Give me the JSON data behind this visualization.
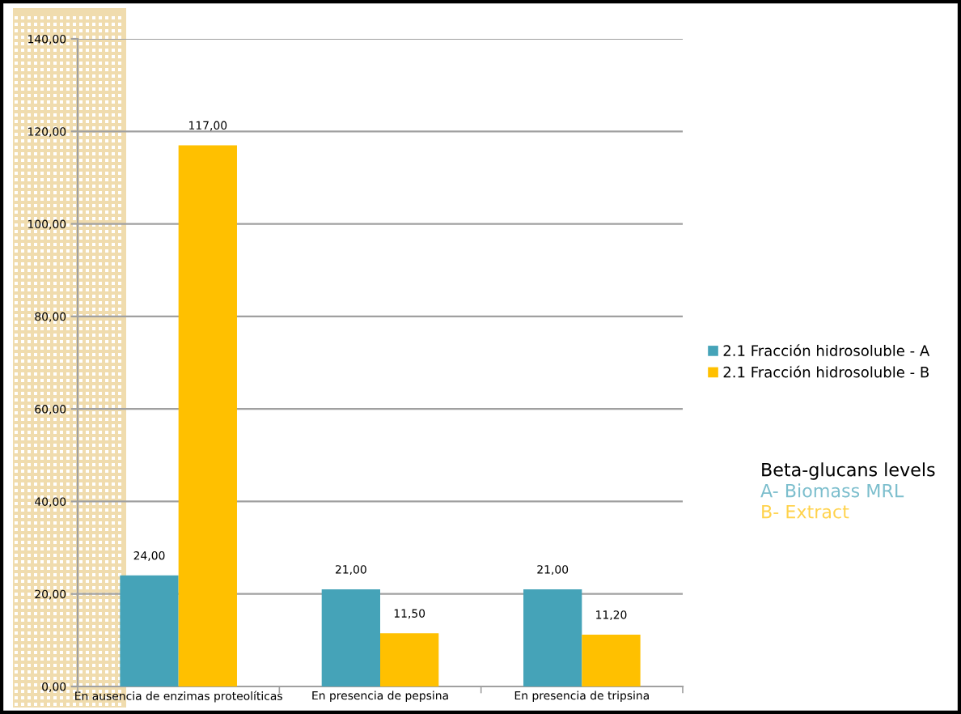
{
  "chart_data": {
    "type": "bar",
    "categories": [
      "En ausencia de enzimas proteolíticas",
      "En presencia de pepsina",
      "En presencia de tripsina"
    ],
    "series": [
      {
        "name": "2.1 Fracción hidrosoluble - A",
        "color": "#45a3b8",
        "values": [
          24,
          21,
          21
        ],
        "value_labels": [
          "24,00",
          "21,00",
          "21,00"
        ]
      },
      {
        "name": "2.1 Fracción hidrosoluble - B",
        "color": "#ffc000",
        "values": [
          117,
          11.5,
          11.2
        ],
        "value_labels": [
          "117,00",
          "11,50",
          "11,20"
        ]
      }
    ],
    "ylim": [
      0,
      140
    ],
    "yticks": [
      {
        "value": 0,
        "label": "0,00"
      },
      {
        "value": 20,
        "label": "20,00"
      },
      {
        "value": 40,
        "label": "40,00"
      },
      {
        "value": 60,
        "label": "60,00"
      },
      {
        "value": 80,
        "label": "80,00"
      },
      {
        "value": 100,
        "label": "100,00"
      },
      {
        "value": 120,
        "label": "120,00"
      },
      {
        "value": 140,
        "label": "140,00"
      }
    ],
    "grid": "y",
    "legend": "right",
    "annotations": [
      "Beta-glucans levels",
      "A- Biomass MRL",
      "B- Extract"
    ]
  }
}
